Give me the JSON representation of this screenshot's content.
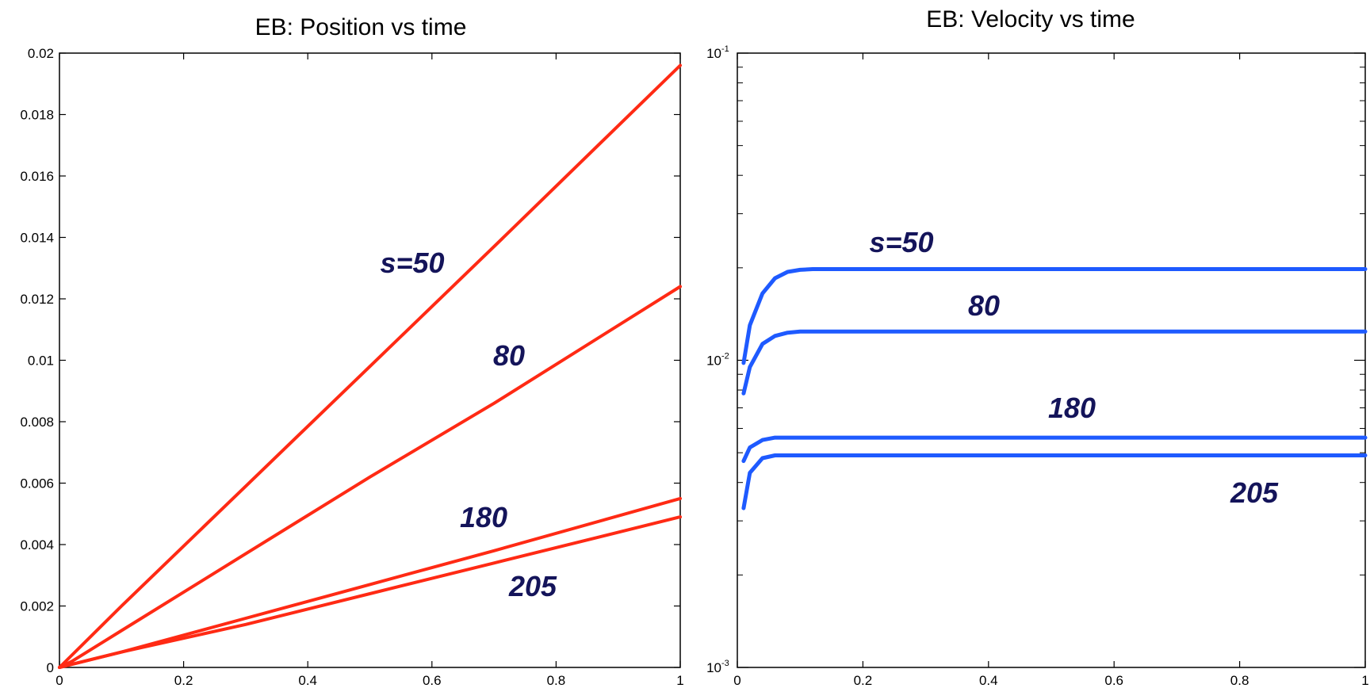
{
  "chart_data": [
    {
      "type": "line",
      "title": "EB: Position vs time",
      "xlabel": "",
      "ylabel": "",
      "xlim": [
        0,
        1
      ],
      "ylim": [
        0,
        0.02
      ],
      "xticks": [
        "0",
        "0.2",
        "0.4",
        "0.6",
        "0.8",
        "1"
      ],
      "yticks": [
        "0",
        "0.002",
        "0.004",
        "0.006",
        "0.008",
        "0.01",
        "0.012",
        "0.014",
        "0.016",
        "0.018",
        "0.02"
      ],
      "line_color": "#ff2a14",
      "series": [
        {
          "label": "s=50",
          "x": [
            0,
            0.02,
            0.1,
            0.3,
            0.5,
            0.7,
            1.0
          ],
          "values": [
            0,
            0.0004,
            0.002,
            0.0059,
            0.0098,
            0.0137,
            0.0196
          ]
        },
        {
          "label": "80",
          "x": [
            0,
            0.02,
            0.1,
            0.3,
            0.5,
            0.7,
            1.0
          ],
          "values": [
            0,
            0.0002,
            0.0012,
            0.0037,
            0.0062,
            0.0086,
            0.0124
          ]
        },
        {
          "label": "180",
          "x": [
            0,
            0.02,
            0.1,
            0.3,
            0.5,
            0.7,
            1.0
          ],
          "values": [
            0,
            0.0001,
            0.0005,
            0.0016,
            0.0027,
            0.0038,
            0.0055
          ]
        },
        {
          "label": "205",
          "x": [
            0,
            0.02,
            0.1,
            0.3,
            0.5,
            0.7,
            1.0
          ],
          "values": [
            0,
            0.0001,
            0.0005,
            0.0014,
            0.0024,
            0.0034,
            0.0049
          ]
        }
      ]
    },
    {
      "type": "line",
      "title": "EB: Velocity vs time",
      "xlabel": "",
      "ylabel": "",
      "xlim": [
        0,
        1
      ],
      "ylim": [
        0.001,
        0.1
      ],
      "yscale": "log",
      "xticks": [
        "0",
        "0.2",
        "0.4",
        "0.6",
        "0.8",
        "1"
      ],
      "yticks": [
        "10",
        "10",
        "10"
      ],
      "ytick_exponents": [
        "-3",
        "-2",
        "-1"
      ],
      "line_color": "#1e5aff",
      "series": [
        {
          "label": "s=50",
          "x": [
            0.01,
            0.02,
            0.04,
            0.06,
            0.08,
            0.1,
            0.12,
            0.14,
            0.2,
            1.0
          ],
          "values": [
            0.0098,
            0.013,
            0.0165,
            0.0185,
            0.0194,
            0.0197,
            0.0198,
            0.0198,
            0.0198,
            0.0198
          ]
        },
        {
          "label": "80",
          "x": [
            0.01,
            0.02,
            0.04,
            0.06,
            0.08,
            0.1,
            0.12,
            1.0
          ],
          "values": [
            0.0078,
            0.0095,
            0.0113,
            0.012,
            0.0123,
            0.0124,
            0.0124,
            0.0124
          ]
        },
        {
          "label": "180",
          "x": [
            0.01,
            0.02,
            0.04,
            0.06,
            0.08,
            1.0
          ],
          "values": [
            0.0047,
            0.0052,
            0.0055,
            0.0056,
            0.0056,
            0.0056
          ]
        },
        {
          "label": "205",
          "x": [
            0.01,
            0.02,
            0.04,
            0.06,
            0.08,
            1.0
          ],
          "values": [
            0.0033,
            0.0043,
            0.0048,
            0.0049,
            0.0049,
            0.0049
          ]
        }
      ]
    }
  ]
}
